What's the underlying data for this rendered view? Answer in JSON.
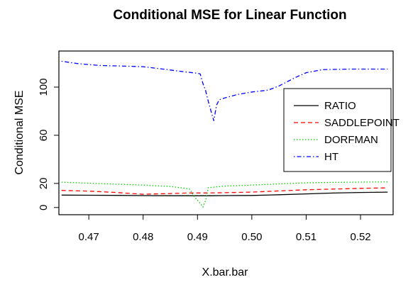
{
  "chart_data": {
    "type": "line",
    "title": "Conditional MSE for Linear Function",
    "xlabel": "X.bar.bar",
    "ylabel": "Conditional MSE",
    "xlim": [
      0.4645,
      0.526
    ],
    "ylim": [
      -6,
      130
    ],
    "x_ticks": [
      0.47,
      0.48,
      0.49,
      0.5,
      0.51,
      0.52
    ],
    "x_tick_labels": [
      "0.47",
      "0.48",
      "0.49",
      "0.50",
      "0.51",
      "0.52"
    ],
    "y_ticks": [
      0,
      20,
      60,
      100
    ],
    "y_tick_labels": [
      "0",
      "20",
      "60",
      "100"
    ],
    "grid": false,
    "legend_position": "right",
    "series": [
      {
        "name": "RATIO",
        "color": "#000000",
        "dash": "solid",
        "points": [
          [
            0.465,
            10.3
          ],
          [
            0.47,
            10.2
          ],
          [
            0.475,
            10.1
          ],
          [
            0.48,
            9.9
          ],
          [
            0.485,
            9.8
          ],
          [
            0.4895,
            9.8
          ],
          [
            0.491,
            9.8
          ],
          [
            0.4925,
            9.8
          ],
          [
            0.495,
            9.9
          ],
          [
            0.5,
            10.0
          ],
          [
            0.505,
            10.6
          ],
          [
            0.51,
            11.3
          ],
          [
            0.515,
            12.0
          ],
          [
            0.52,
            12.5
          ],
          [
            0.525,
            12.8
          ]
        ]
      },
      {
        "name": "SADDLEPOINT",
        "color": "#ff0000",
        "dash": "dashed",
        "points": [
          [
            0.465,
            14.2
          ],
          [
            0.47,
            13.6
          ],
          [
            0.475,
            12.5
          ],
          [
            0.48,
            11.0
          ],
          [
            0.485,
            11.6
          ],
          [
            0.488,
            12.0
          ],
          [
            0.49,
            12.1
          ],
          [
            0.492,
            12.1
          ],
          [
            0.495,
            12.3
          ],
          [
            0.5,
            12.8
          ],
          [
            0.505,
            13.8
          ],
          [
            0.51,
            14.7
          ],
          [
            0.515,
            15.3
          ],
          [
            0.52,
            15.9
          ],
          [
            0.525,
            16.3
          ]
        ]
      },
      {
        "name": "DORFMAN",
        "color": "#00cc00",
        "dash": "dotted",
        "points": [
          [
            0.465,
            21.0
          ],
          [
            0.47,
            20.2
          ],
          [
            0.475,
            19.4
          ],
          [
            0.48,
            18.6
          ],
          [
            0.485,
            17.5
          ],
          [
            0.4885,
            15.5
          ],
          [
            0.4895,
            8.5
          ],
          [
            0.4905,
            3.5
          ],
          [
            0.491,
            0.4
          ],
          [
            0.4915,
            6.0
          ],
          [
            0.492,
            16.5
          ],
          [
            0.495,
            17.8
          ],
          [
            0.5,
            18.6
          ],
          [
            0.505,
            19.6
          ],
          [
            0.51,
            20.5
          ],
          [
            0.515,
            20.9
          ],
          [
            0.52,
            21.1
          ],
          [
            0.525,
            21.3
          ]
        ]
      },
      {
        "name": "HT",
        "color": "#0000ff",
        "dash": "dashdot",
        "points": [
          [
            0.465,
            121.5
          ],
          [
            0.468,
            119.5
          ],
          [
            0.472,
            118.0
          ],
          [
            0.476,
            117.5
          ],
          [
            0.48,
            117.0
          ],
          [
            0.484,
            114.8
          ],
          [
            0.488,
            112.5
          ],
          [
            0.49,
            111.5
          ],
          [
            0.4905,
            111.0
          ],
          [
            0.491,
            103.0
          ],
          [
            0.4915,
            97.0
          ],
          [
            0.492,
            88.0
          ],
          [
            0.4925,
            80.0
          ],
          [
            0.493,
            72.0
          ],
          [
            0.4935,
            85.0
          ],
          [
            0.494,
            89.5
          ],
          [
            0.495,
            91.0
          ],
          [
            0.4975,
            94.0
          ],
          [
            0.5,
            96.0
          ],
          [
            0.503,
            97.5
          ],
          [
            0.505,
            101.0
          ],
          [
            0.508,
            108.0
          ],
          [
            0.51,
            112.0
          ],
          [
            0.513,
            114.5
          ],
          [
            0.518,
            115.0
          ],
          [
            0.525,
            115.0
          ]
        ]
      }
    ]
  }
}
